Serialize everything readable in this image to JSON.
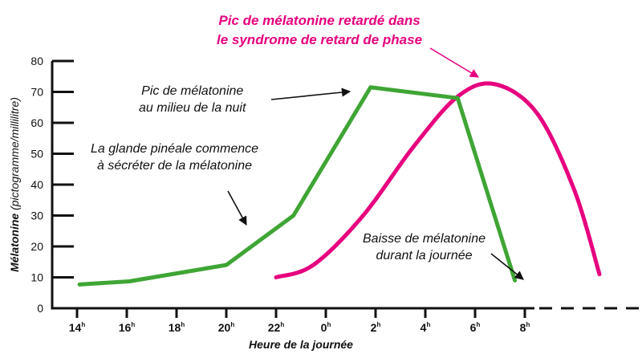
{
  "chart_data": {
    "type": "line",
    "title": "",
    "xlabel": "Heure de la journée",
    "ylabel_bold": "Mélatonine",
    "ylabel_unit": "(pictogramme/millilitre)",
    "ylim": [
      0,
      80
    ],
    "yticks": [
      0,
      10,
      20,
      30,
      40,
      50,
      60,
      70,
      80
    ],
    "x_hours": [
      14,
      16,
      18,
      20,
      22,
      24,
      26,
      28,
      30,
      32
    ],
    "x_tick_labels": [
      {
        "num": "14",
        "sup": "h"
      },
      {
        "num": "16",
        "sup": "h"
      },
      {
        "num": "18",
        "sup": "h"
      },
      {
        "num": "20",
        "sup": "h"
      },
      {
        "num": "22",
        "sup": "h"
      },
      {
        "num": "0",
        "sup": "h"
      },
      {
        "num": "2",
        "sup": "h"
      },
      {
        "num": "4",
        "sup": "h"
      },
      {
        "num": "6",
        "sup": "h"
      },
      {
        "num": "8",
        "sup": "h"
      }
    ],
    "grid": false,
    "series": [
      {
        "color": "#3fa535",
        "shape": "linear",
        "x": [
          14.1,
          16.1,
          20.0,
          22.7,
          25.8,
          29.3,
          31.6
        ],
        "y": [
          7.7,
          8.7,
          14.0,
          30.0,
          71.5,
          68.0,
          9.0
        ]
      },
      {
        "color": "#e6007e",
        "shape": "smooth",
        "x": [
          22.0,
          23.5,
          25.5,
          27.5,
          29.3,
          30.8,
          32.5,
          34.0,
          35.0
        ],
        "y": [
          10.0,
          14.0,
          30.0,
          52.0,
          68.5,
          72.5,
          63.0,
          38.0,
          11.0
        ]
      }
    ],
    "axis_extension": "dashed",
    "annotations": {
      "delayed_peak": [
        "Pic de mélatonine retardé dans",
        "le syndrome de retard de phase"
      ],
      "midnight_peak": [
        "Pic de mélatonine",
        "au milieu de la nuit"
      ],
      "pineal_start": [
        "La glande pinéale commence",
        "à sécréter de la mélatonine"
      ],
      "daytime_drop": [
        "Baisse de mélatonine",
        "durant la journée"
      ]
    },
    "colors": {
      "normal": "#3fa535",
      "delayed": "#e6007e",
      "axis": "#111111"
    }
  }
}
